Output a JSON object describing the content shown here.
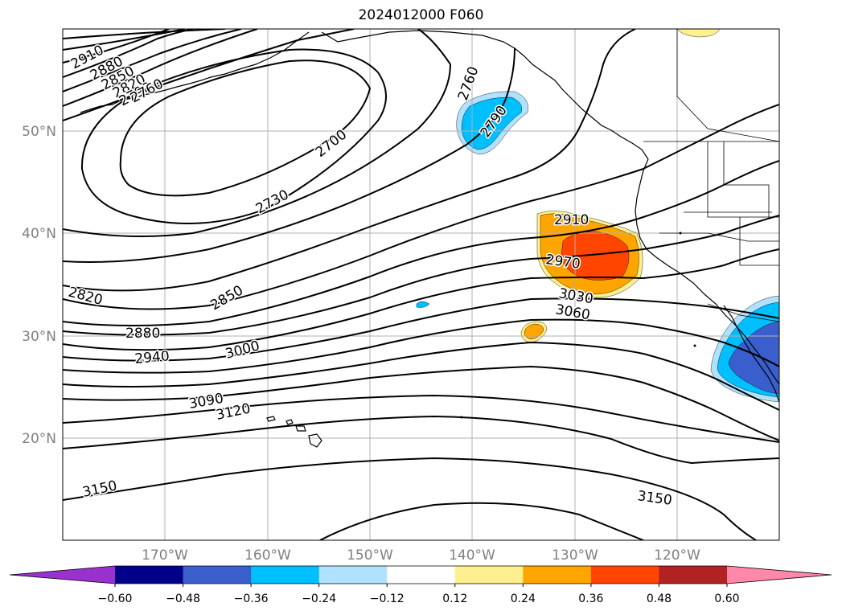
{
  "title": "2024012000 F060",
  "lat_labels": [
    "50°N",
    "40°N",
    "30°N",
    "20°N"
  ],
  "lon_labels": [
    "170°W",
    "160°W",
    "150°W",
    "140°W",
    "130°W",
    "120°W"
  ],
  "contour_labels": [
    "2910",
    "2880",
    "2850",
    "2820",
    "2790",
    "2760",
    "2700",
    "2730",
    "2760",
    "2790",
    "2910",
    "2970",
    "3030",
    "3060",
    "2820",
    "2850",
    "2880",
    "2940",
    "3000",
    "3090",
    "3120",
    "3150",
    "3150"
  ],
  "colorbar": {
    "colors": [
      "#9932cc",
      "#00008b",
      "#3a5fcd",
      "#00bfff",
      "#b0e2ff",
      "#ffffff",
      "#fff08f",
      "#ffa500",
      "#ff4500",
      "#b22222",
      "#ff88aa"
    ],
    "tick_labels": [
      "−0.60",
      "−0.48",
      "−0.36",
      "−0.24",
      "−0.12",
      "0.12",
      "0.24",
      "0.36",
      "0.48",
      "0.60"
    ]
  }
}
